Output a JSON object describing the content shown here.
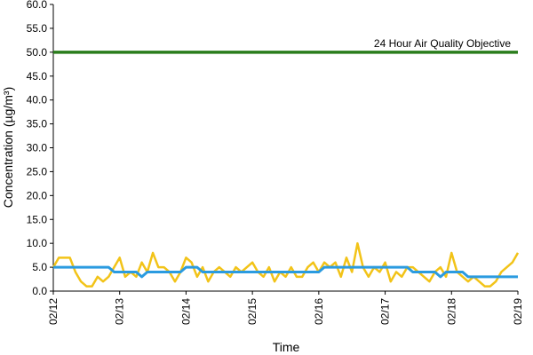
{
  "chart_data": {
    "type": "line",
    "x_label": "Time",
    "y_label": "Concentration (µg/m³)",
    "categories": [
      "02/12",
      null,
      null,
      null,
      null,
      null,
      null,
      null,
      null,
      null,
      null,
      null,
      "02/13",
      null,
      null,
      null,
      null,
      null,
      null,
      null,
      null,
      null,
      null,
      null,
      "02/14",
      null,
      null,
      null,
      null,
      null,
      null,
      null,
      null,
      null,
      null,
      null,
      "02/15",
      null,
      null,
      null,
      null,
      null,
      null,
      null,
      null,
      null,
      null,
      null,
      "02/16",
      null,
      null,
      null,
      null,
      null,
      null,
      null,
      null,
      null,
      null,
      null,
      "02/17",
      null,
      null,
      null,
      null,
      null,
      null,
      null,
      null,
      null,
      null,
      null,
      "02/18",
      null,
      null,
      null,
      null,
      null,
      null,
      null,
      null,
      null,
      null,
      null,
      "02/19"
    ],
    "series": [
      {
        "color": "#f2c318",
        "values": [
          5,
          7,
          7,
          7,
          4,
          2,
          1,
          1,
          3,
          2,
          3,
          5,
          7,
          3,
          4,
          3,
          6,
          4,
          8,
          5,
          5,
          4,
          2,
          4,
          7,
          6,
          3,
          5,
          2,
          4,
          5,
          4,
          3,
          5,
          4,
          5,
          6,
          4,
          3,
          5,
          2,
          4,
          3,
          5,
          3,
          3,
          5,
          6,
          4,
          6,
          5,
          6,
          3,
          7,
          4,
          10,
          5,
          3,
          5,
          4,
          6,
          2,
          4,
          3,
          5,
          5,
          4,
          3,
          2,
          4,
          5,
          3,
          8,
          4,
          3,
          2,
          3,
          2,
          1,
          1,
          2,
          4,
          5,
          6,
          8
        ]
      },
      {
        "color": "#2b9be0",
        "values": [
          5,
          5,
          5,
          5,
          5,
          5,
          5,
          5,
          5,
          5,
          5,
          4,
          4,
          4,
          4,
          4,
          3,
          4,
          4,
          4,
          4,
          4,
          4,
          4,
          5,
          5,
          5,
          4,
          4,
          4,
          4,
          4,
          4,
          4,
          4,
          4,
          4,
          4,
          4,
          4,
          4,
          4,
          4,
          4,
          4,
          4,
          4,
          4,
          4,
          5,
          5,
          5,
          5,
          5,
          5,
          5,
          5,
          5,
          5,
          5,
          5,
          5,
          5,
          5,
          5,
          4,
          4,
          4,
          4,
          4,
          3,
          4,
          4,
          4,
          4,
          3,
          3,
          3,
          3,
          3,
          3,
          3,
          3,
          3,
          3
        ]
      }
    ],
    "reference_line": {
      "label": "24 Hour Air Quality Objective",
      "value": 50,
      "color": "#2a7d1c"
    },
    "ylim": [
      0,
      60
    ],
    "yticks": [
      {
        "value": 0,
        "label": "0.0"
      },
      {
        "value": 5,
        "label": "5.0"
      },
      {
        "value": 10,
        "label": "10.0"
      },
      {
        "value": 15,
        "label": "15.0"
      },
      {
        "value": 20,
        "label": "20.0"
      },
      {
        "value": 25,
        "label": "25.0"
      },
      {
        "value": 30,
        "label": "30.0"
      },
      {
        "value": 35,
        "label": "35.0"
      },
      {
        "value": 40,
        "label": "40.0"
      },
      {
        "value": 45,
        "label": "45.0"
      },
      {
        "value": 50,
        "label": "50.0"
      },
      {
        "value": 55,
        "label": "55.0"
      },
      {
        "value": 60,
        "label": "60.0"
      }
    ]
  }
}
